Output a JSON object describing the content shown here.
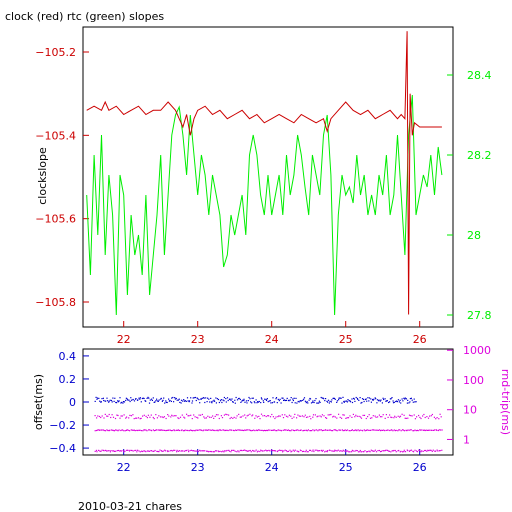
{
  "title": "clock (red) rtc (green) slopes",
  "footer": "2010-03-21 chares",
  "colors": {
    "red": "#cc0000",
    "green": "#00ee00",
    "blue": "#0000cc",
    "magenta": "#dd00dd",
    "frame": "#000000"
  },
  "chart_data": [
    {
      "type": "line",
      "title": "clock (red) rtc (green) slopes",
      "xlabel": "",
      "ylabel": "clockslope",
      "y2label": "",
      "xlim": [
        21.45,
        26.45
      ],
      "ylim": [
        -105.86,
        -105.14
      ],
      "y2lim": [
        27.77,
        28.52
      ],
      "x_ticks": [
        22,
        23,
        24,
        25,
        26
      ],
      "y_ticks": [
        -105.2,
        -105.4,
        -105.6,
        -105.8
      ],
      "y_tick_labels": [
        "-105.2",
        "-105.4",
        "-105.6",
        "-105.8"
      ],
      "y2_ticks": [
        28.4,
        28.2,
        28.0,
        27.8
      ],
      "y2_tick_labels": [
        "28.4",
        "28.2",
        "28",
        "27.8"
      ],
      "grid": false,
      "series": [
        {
          "name": "clock",
          "axis": "left",
          "color": "#cc0000",
          "x": [
            21.5,
            21.6,
            21.7,
            21.75,
            21.8,
            21.9,
            22.0,
            22.1,
            22.2,
            22.3,
            22.4,
            22.5,
            22.6,
            22.7,
            22.75,
            22.8,
            22.85,
            22.9,
            22.95,
            23.0,
            23.1,
            23.2,
            23.3,
            23.4,
            23.5,
            23.6,
            23.7,
            23.8,
            23.9,
            24.0,
            24.1,
            24.2,
            24.3,
            24.4,
            24.5,
            24.6,
            24.7,
            24.75,
            24.8,
            24.9,
            25.0,
            25.1,
            25.2,
            25.3,
            25.4,
            25.5,
            25.6,
            25.7,
            25.75,
            25.8,
            25.83,
            25.85,
            25.87,
            25.9,
            25.93,
            26.0,
            26.1,
            26.2,
            26.3
          ],
          "y": [
            -105.34,
            -105.33,
            -105.34,
            -105.32,
            -105.34,
            -105.33,
            -105.35,
            -105.34,
            -105.33,
            -105.35,
            -105.34,
            -105.34,
            -105.32,
            -105.34,
            -105.36,
            -105.38,
            -105.35,
            -105.4,
            -105.36,
            -105.34,
            -105.33,
            -105.35,
            -105.34,
            -105.36,
            -105.35,
            -105.34,
            -105.36,
            -105.35,
            -105.37,
            -105.36,
            -105.35,
            -105.36,
            -105.37,
            -105.35,
            -105.36,
            -105.37,
            -105.36,
            -105.39,
            -105.36,
            -105.34,
            -105.32,
            -105.34,
            -105.35,
            -105.34,
            -105.36,
            -105.35,
            -105.34,
            -105.36,
            -105.35,
            -105.36,
            -105.15,
            -105.83,
            -105.3,
            -105.4,
            -105.37,
            -105.38,
            -105.38,
            -105.38,
            -105.38
          ]
        },
        {
          "name": "rtc",
          "axis": "right",
          "color": "#00ee00",
          "x": [
            21.5,
            21.55,
            21.6,
            21.65,
            21.7,
            21.75,
            21.8,
            21.85,
            21.9,
            21.95,
            22.0,
            22.05,
            22.1,
            22.15,
            22.2,
            22.25,
            22.3,
            22.35,
            22.4,
            22.45,
            22.5,
            22.55,
            22.6,
            22.65,
            22.7,
            22.75,
            22.8,
            22.85,
            22.9,
            22.95,
            23.0,
            23.05,
            23.1,
            23.15,
            23.2,
            23.25,
            23.3,
            23.35,
            23.4,
            23.45,
            23.5,
            23.55,
            23.6,
            23.65,
            23.7,
            23.75,
            23.8,
            23.85,
            23.9,
            23.95,
            24.0,
            24.05,
            24.1,
            24.15,
            24.2,
            24.25,
            24.3,
            24.35,
            24.4,
            24.45,
            24.5,
            24.55,
            24.6,
            24.65,
            24.7,
            24.75,
            24.8,
            24.85,
            24.9,
            24.95,
            25.0,
            25.05,
            25.1,
            25.15,
            25.2,
            25.25,
            25.3,
            25.35,
            25.4,
            25.45,
            25.5,
            25.55,
            25.6,
            25.65,
            25.7,
            25.75,
            25.8,
            25.85,
            25.9,
            25.95,
            26.0,
            26.05,
            26.1,
            26.15,
            26.2,
            26.25,
            26.3
          ],
          "y": [
            28.1,
            27.9,
            28.2,
            28.0,
            28.25,
            27.95,
            28.15,
            28.05,
            27.8,
            28.15,
            28.1,
            27.85,
            28.05,
            27.95,
            28.0,
            27.9,
            28.1,
            27.85,
            27.95,
            28.05,
            28.2,
            27.95,
            28.1,
            28.25,
            28.3,
            28.32,
            28.25,
            28.15,
            28.3,
            28.2,
            28.1,
            28.2,
            28.15,
            28.05,
            28.15,
            28.1,
            28.05,
            27.92,
            27.95,
            28.05,
            28.0,
            28.05,
            28.1,
            28.0,
            28.2,
            28.25,
            28.2,
            28.1,
            28.05,
            28.15,
            28.05,
            28.1,
            28.15,
            28.05,
            28.2,
            28.1,
            28.15,
            28.25,
            28.2,
            28.12,
            28.05,
            28.2,
            28.15,
            28.1,
            28.25,
            28.3,
            28.15,
            27.8,
            28.05,
            28.15,
            28.1,
            28.12,
            28.08,
            28.2,
            28.1,
            28.15,
            28.05,
            28.1,
            28.05,
            28.15,
            28.1,
            28.2,
            28.05,
            28.1,
            28.25,
            28.1,
            27.95,
            28.25,
            28.35,
            28.05,
            28.1,
            28.15,
            28.12,
            28.2,
            28.1,
            28.22,
            28.15
          ]
        }
      ]
    },
    {
      "type": "scatter",
      "ylabel": "offset(ms)",
      "y2label": "rnd-trip(ms)",
      "xlim": [
        21.45,
        26.45
      ],
      "ylim": [
        -0.46,
        0.46
      ],
      "y2_scale": "log",
      "y2lim": [
        0.3,
        1100
      ],
      "x_ticks": [
        22,
        23,
        24,
        25,
        26
      ],
      "y_ticks": [
        0.4,
        0.2,
        0,
        -0.2,
        -0.4
      ],
      "y_tick_labels": [
        "0.4",
        "0.2",
        "0",
        "-0.2",
        "-0.4"
      ],
      "y2_ticks": [
        1000,
        100,
        10,
        1
      ],
      "y2_tick_labels": [
        "1000",
        "100",
        "10",
        "1"
      ],
      "grid": false,
      "series": [
        {
          "name": "offset",
          "axis": "left",
          "color": "#0000cc",
          "x_range": [
            21.6,
            25.95
          ],
          "center": 0.02,
          "spread": 0.05
        },
        {
          "name": "round-trip bands",
          "axis": "left",
          "color": "#dd00dd",
          "bands": [
            {
              "center": -0.12,
              "spread": 0.04
            },
            {
              "center": -0.24,
              "spread": 0.008
            },
            {
              "center": -0.42,
              "spread": 0.015
            }
          ]
        }
      ]
    }
  ]
}
